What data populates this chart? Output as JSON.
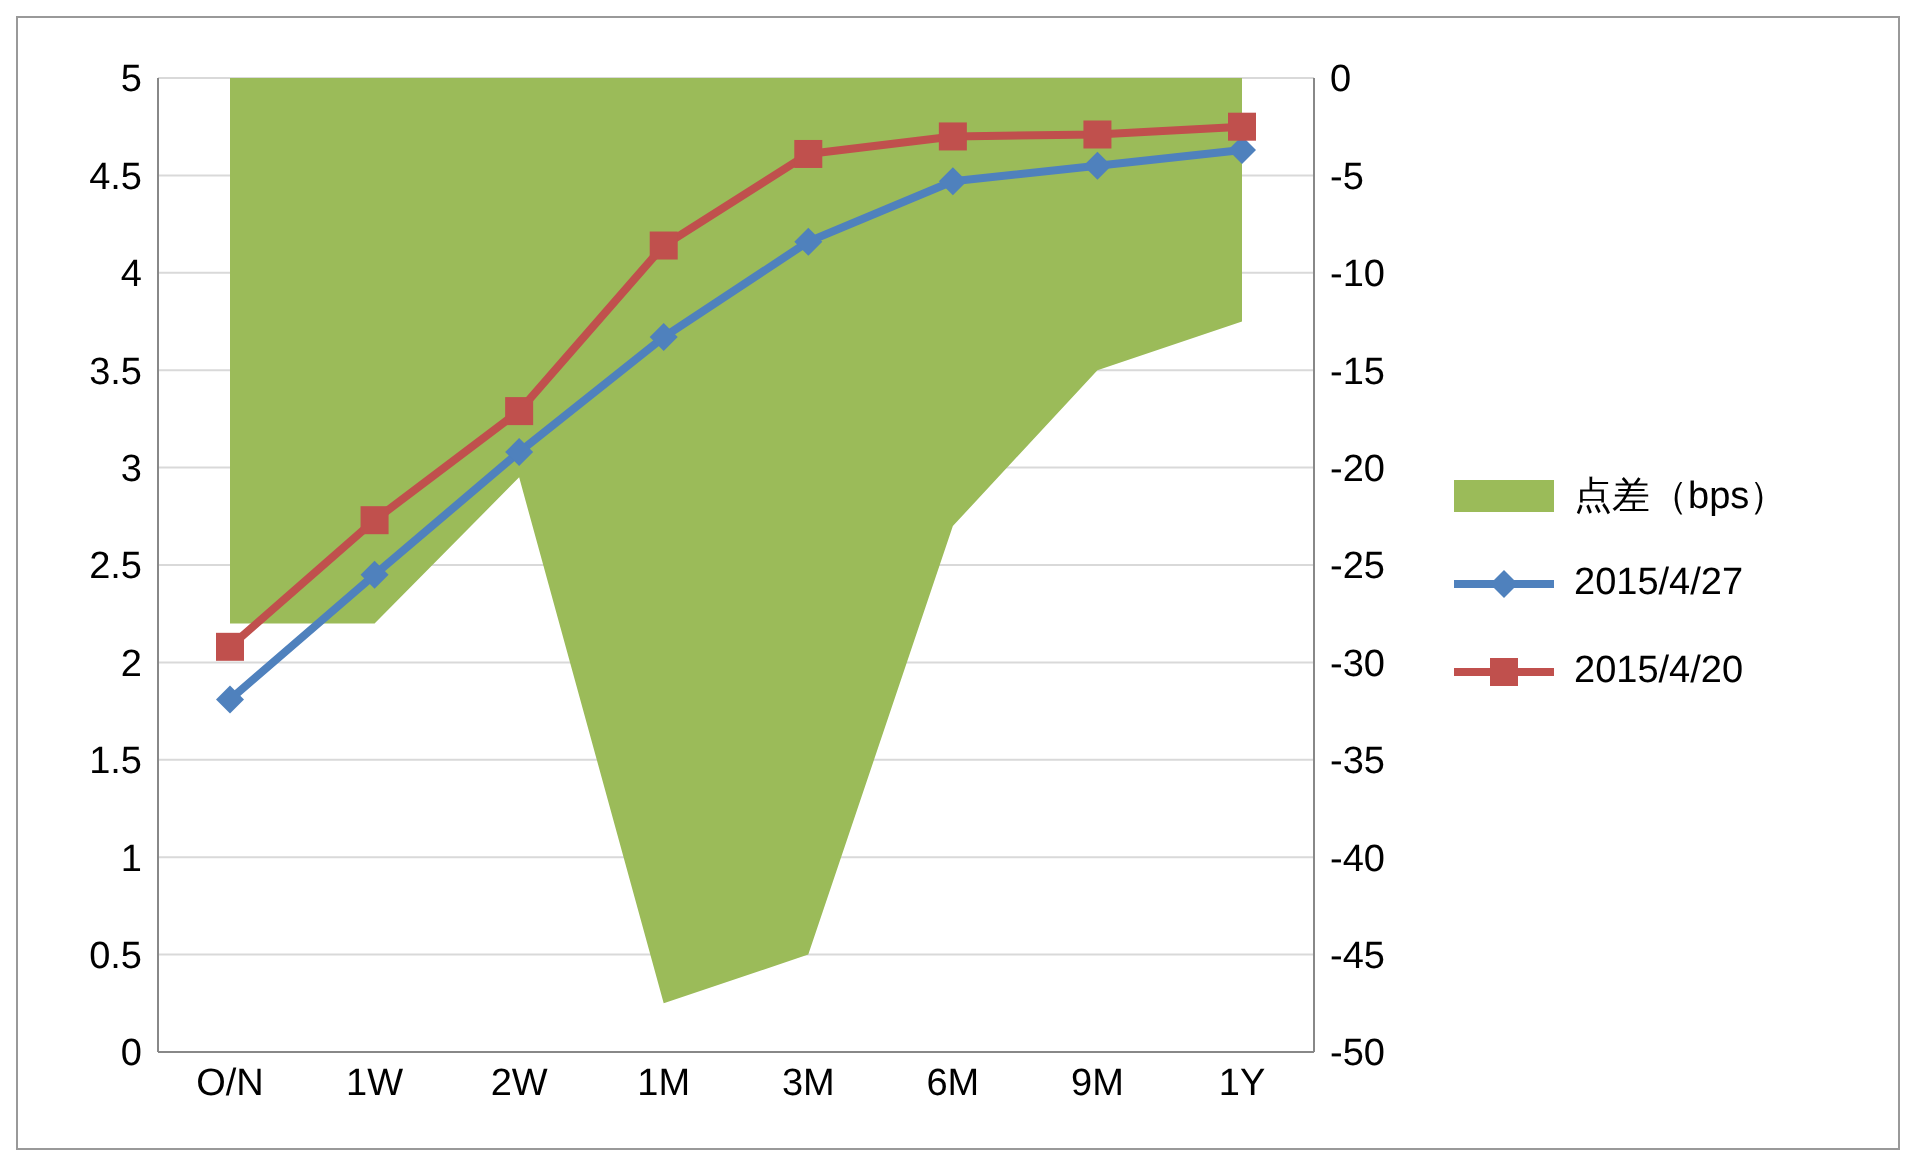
{
  "chart_data": {
    "type": "line",
    "categories": [
      "O/N",
      "1W",
      "2W",
      "1M",
      "3M",
      "6M",
      "9M",
      "1Y"
    ],
    "series": [
      {
        "name": "点差（bps）",
        "type": "area",
        "axis": "y2",
        "color": "#9bbb59",
        "values": [
          -28,
          -28,
          -20.5,
          -47.5,
          -45,
          -23,
          -15,
          -12.5
        ]
      },
      {
        "name": "2015/4/27",
        "color": "#4f81bd",
        "marker": "diamond",
        "values": [
          1.81,
          2.45,
          3.08,
          3.67,
          4.16,
          4.47,
          4.55,
          4.63
        ]
      },
      {
        "name": "2015/4/20",
        "color": "#c0504d",
        "marker": "square",
        "values": [
          2.08,
          2.73,
          3.29,
          4.14,
          4.61,
          4.7,
          4.71,
          4.75
        ]
      }
    ],
    "ylim": [
      0,
      5
    ],
    "yticks": [
      0,
      0.5,
      1,
      1.5,
      2,
      2.5,
      3,
      3.5,
      4,
      4.5,
      5
    ],
    "y2lim": [
      -50,
      0
    ],
    "y2ticks": [
      -50,
      -45,
      -40,
      -35,
      -30,
      -25,
      -20,
      -15,
      -10,
      -5,
      0
    ],
    "grid": "y",
    "legend": "right"
  }
}
